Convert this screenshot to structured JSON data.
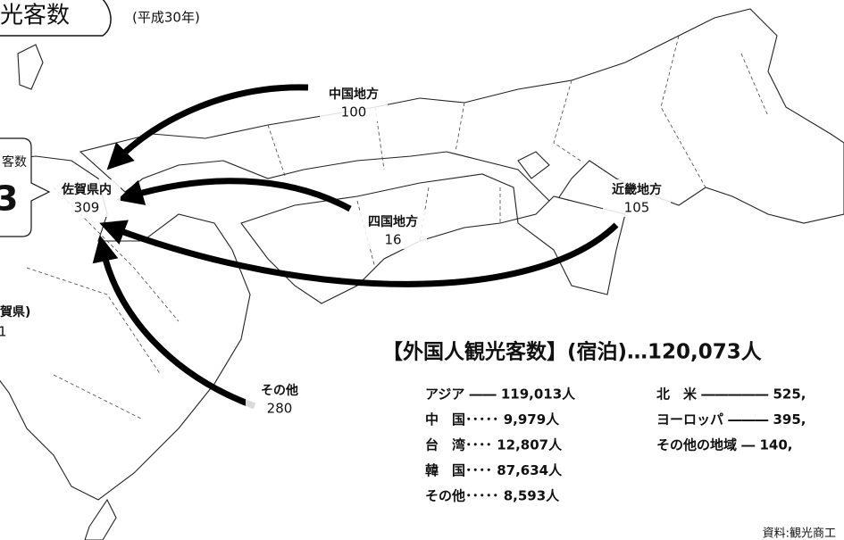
{
  "header": {
    "title": "光客数",
    "year": "(平成30年)"
  },
  "left_box": {
    "label": "客数",
    "value": "3"
  },
  "left_note": {
    "label": "賀県)",
    "value": "1"
  },
  "flows": [
    {
      "name": "佐賀県内",
      "value": 309
    },
    {
      "name": "中国地方",
      "value": 100
    },
    {
      "name": "四国地方",
      "value": 16
    },
    {
      "name": "近畿地方",
      "value": 105
    },
    {
      "name": "その他",
      "value": 280
    }
  ],
  "foreign": {
    "title": "【外国人観光客数】(宿泊)…120,073人",
    "rows": [
      [
        "アジア ―― 119,013人",
        "北　米 ――――― 525,"
      ],
      [
        "中　国･････ 9,979人",
        "ヨーロッパ ――― 395,"
      ],
      [
        "台　湾････ 12,807人",
        "その他の地域 ― 140,"
      ],
      [
        "韓　国････ 87,634人",
        null
      ],
      [
        "その他･････ 8,593人",
        null
      ]
    ]
  },
  "source": "資料:観光商工"
}
